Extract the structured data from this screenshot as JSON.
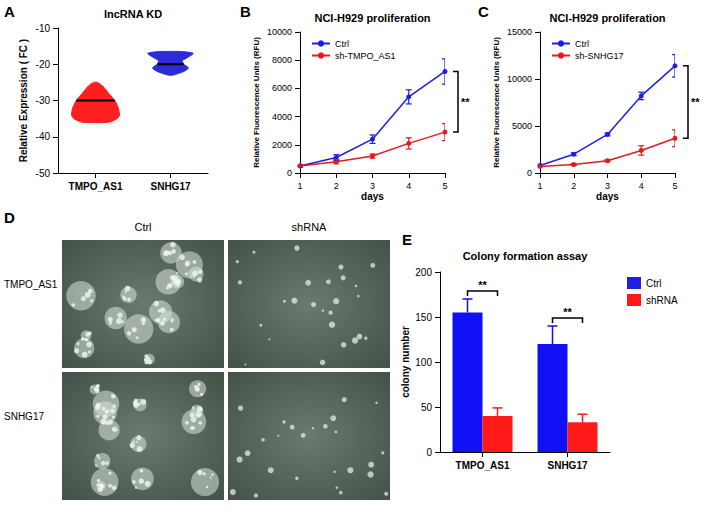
{
  "chart_data": [
    {
      "panel": "A",
      "type": "violin",
      "title": "lncRNA KD",
      "y_label": "Relative Expression ( FC )",
      "categories": [
        "TMPO_AS1",
        "SNHG17"
      ],
      "violins": [
        {
          "color": "#ff1f1f",
          "median": -30,
          "density": [
            [
              -36,
              0.55
            ],
            [
              -35,
              0.9
            ],
            [
              -34,
              1.0
            ],
            [
              -32,
              0.95
            ],
            [
              -30,
              0.8
            ],
            [
              -28,
              0.55
            ],
            [
              -26,
              0.3
            ],
            [
              -25,
              0.08
            ]
          ]
        },
        {
          "color": "#2b2bd9",
          "median": -20,
          "density": [
            [
              -23,
              0.1
            ],
            [
              -22,
              0.55
            ],
            [
              -21,
              0.75
            ],
            [
              -20,
              0.55
            ],
            [
              -19,
              0.5
            ],
            [
              -18,
              0.75
            ],
            [
              -17,
              0.95
            ],
            [
              -16.5,
              0.5
            ]
          ]
        }
      ],
      "ylim": [
        -50,
        -10
      ],
      "yticks": [
        -50,
        -40,
        -30,
        -20,
        -10
      ],
      "grid": false
    },
    {
      "panel": "B",
      "type": "line",
      "title": "NCI-H929 proliferation",
      "x_label": "days",
      "y_label": "Relative Fluorescence Units (RFU)",
      "x": [
        1,
        2,
        3,
        4,
        5
      ],
      "xlim": [
        1,
        5
      ],
      "xticks": [
        1,
        2,
        3,
        4,
        5
      ],
      "ylim": [
        0,
        10000
      ],
      "yticks": [
        0,
        2000,
        4000,
        6000,
        8000,
        10000
      ],
      "grid": false,
      "legend": "upper left",
      "marker": "circle",
      "annotation": "**",
      "series": [
        {
          "name": "Ctrl",
          "color": "#1f1fe0",
          "values": [
            500,
            1100,
            2400,
            5400,
            7200
          ],
          "errors": [
            100,
            200,
            300,
            500,
            900
          ]
        },
        {
          "name": "sh-TMPO_AS1",
          "color": "#e41a1c",
          "values": [
            500,
            800,
            1200,
            2100,
            2900
          ],
          "errors": [
            50,
            150,
            150,
            400,
            600
          ]
        }
      ]
    },
    {
      "panel": "C",
      "type": "line",
      "title": "NCI-H929 proliferation",
      "x_label": "days",
      "y_label": "Relative Fluorescence Units (RFU)",
      "x": [
        1,
        2,
        3,
        4,
        5
      ],
      "xlim": [
        1,
        5
      ],
      "xticks": [
        1,
        2,
        3,
        4,
        5
      ],
      "ylim": [
        0,
        15000
      ],
      "yticks": [
        0,
        5000,
        10000,
        15000
      ],
      "grid": false,
      "legend": "upper left",
      "marker": "circle",
      "annotation": "**",
      "series": [
        {
          "name": "Ctrl",
          "color": "#1f1fe0",
          "values": [
            800,
            2000,
            4100,
            8200,
            11400
          ],
          "errors": [
            100,
            150,
            150,
            400,
            1200
          ]
        },
        {
          "name": "sh-SNHG17",
          "color": "#e41a1c",
          "values": [
            700,
            900,
            1300,
            2400,
            3700
          ],
          "errors": [
            50,
            100,
            100,
            500,
            900
          ]
        }
      ]
    },
    {
      "panel": "D",
      "type": "image_grid",
      "columns": [
        "Ctrl",
        "shRNA"
      ],
      "rows": [
        "TMPO_AS1",
        "SNHG17"
      ]
    },
    {
      "panel": "E",
      "type": "bar",
      "title": "Colony formation assay",
      "y_label": "colony number",
      "categories": [
        "TMPO_AS1",
        "SNHG17"
      ],
      "ylim": [
        0,
        200
      ],
      "yticks": [
        0,
        50,
        100,
        150,
        200
      ],
      "grid": false,
      "legend": "right",
      "annotation": "**",
      "series": [
        {
          "name": "Ctrl",
          "color": "#1010f5",
          "values": [
            155,
            120
          ],
          "errors": [
            15,
            20
          ]
        },
        {
          "name": "shRNA",
          "color": "#ff1a1a",
          "values": [
            40,
            33
          ],
          "errors": [
            9,
            9
          ]
        }
      ]
    }
  ]
}
